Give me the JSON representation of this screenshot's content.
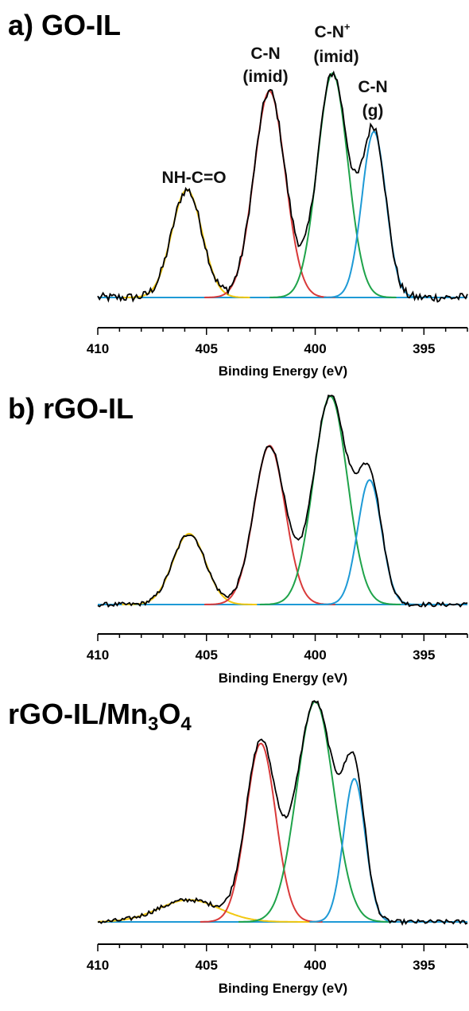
{
  "chart_data": [
    {
      "type": "line",
      "title": "a) GO-IL",
      "xlabel": "Binding Energy (eV)",
      "x_ticks": [
        410,
        405,
        400,
        395
      ],
      "xlim": [
        410,
        393
      ],
      "x_reversed": true,
      "y_axis_shown": false,
      "grid": false,
      "background": 0.04,
      "annotations": [
        {
          "text": "NH-C=O",
          "x": 405.8
        },
        {
          "text": "C-N",
          "x": 402.2
        },
        {
          "text": "(imid)",
          "x": 402.2
        },
        {
          "text": "C-N+",
          "x": 399.3
        },
        {
          "text": "(imid)",
          "x": 399.3
        },
        {
          "text": "C-N",
          "x": 397.5
        },
        {
          "text": "(g)",
          "x": 397.5
        }
      ],
      "series": [
        {
          "component": "NH-C=O",
          "center": 405.9,
          "height": 0.48,
          "sigma": 0.7,
          "color": "#F2C811"
        },
        {
          "component": "C-N (imid)",
          "center": 402.1,
          "height": 0.92,
          "sigma": 0.72,
          "color": "#D93A3A"
        },
        {
          "component": "C-N+ (imid)",
          "center": 399.2,
          "height": 1.0,
          "sigma": 0.7,
          "color": "#1FA34A"
        },
        {
          "component": "C-N (g)",
          "center": 397.3,
          "height": 0.74,
          "sigma": 0.55,
          "color": "#1E9AD6"
        }
      ],
      "envelope_color": "#000000",
      "baseline_color": "#1E9AD6"
    },
    {
      "type": "line",
      "title": "b) rGO-IL",
      "xlabel": "Binding Energy (eV)",
      "x_ticks": [
        410,
        405,
        400,
        395
      ],
      "xlim": [
        410,
        393
      ],
      "x_reversed": true,
      "y_axis_shown": false,
      "grid": false,
      "background": 0.02,
      "series": [
        {
          "component": "NH-C=O",
          "center": 405.8,
          "height": 0.33,
          "sigma": 0.75,
          "color": "#F2C811"
        },
        {
          "component": "C-N (imid)",
          "center": 402.1,
          "height": 0.74,
          "sigma": 0.72,
          "color": "#D93A3A"
        },
        {
          "component": "C-N+ (imid)",
          "center": 399.3,
          "height": 0.97,
          "sigma": 0.78,
          "color": "#1FA34A"
        },
        {
          "component": "C-N (g)",
          "center": 397.5,
          "height": 0.58,
          "sigma": 0.55,
          "color": "#1E9AD6"
        }
      ],
      "envelope_color": "#000000",
      "baseline_color": "#1E9AD6"
    },
    {
      "type": "line",
      "title": "c) rGO-IL/Mn3O4",
      "xlabel": "Binding Energy (eV)",
      "x_ticks": [
        410,
        405,
        400,
        395
      ],
      "xlim": [
        410,
        393
      ],
      "x_reversed": true,
      "y_axis_shown": false,
      "grid": false,
      "background": 0.02,
      "series": [
        {
          "component": "NH-C=O",
          "center": 405.8,
          "height": 0.1,
          "sigma": 1.4,
          "color": "#F2C811"
        },
        {
          "component": "C-N (imid)",
          "center": 402.5,
          "height": 0.81,
          "sigma": 0.68,
          "color": "#D93A3A"
        },
        {
          "component": "C-N+ (imid)",
          "center": 400.0,
          "height": 1.0,
          "sigma": 0.85,
          "color": "#1FA34A"
        },
        {
          "component": "C-N (g)",
          "center": 398.2,
          "height": 0.65,
          "sigma": 0.5,
          "color": "#1E9AD6"
        }
      ],
      "envelope_color": "#000000",
      "baseline_color": "#1E9AD6"
    }
  ]
}
